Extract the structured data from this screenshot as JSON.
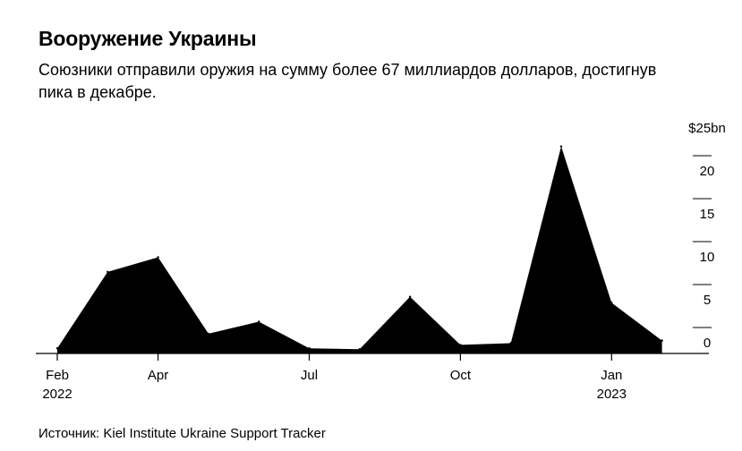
{
  "title": "Вооружение Украины",
  "subtitle": "Союзники отправили оружия на сумму более 67 миллиардов долларов, достигнув пика в декабре.",
  "source": "Источник: Kiel Institute Ukraine Support Tracker",
  "chart_data": {
    "type": "area",
    "title": "Вооружение Украины",
    "subtitle": "Союзники отправили оружия на сумму более 67 миллиардов долларов, достигнув пика в декабре.",
    "x": [
      "2022-02",
      "2022-03",
      "2022-04",
      "2022-05",
      "2022-06",
      "2022-07",
      "2022-08",
      "2022-09",
      "2022-10",
      "2022-11",
      "2022-12",
      "2023-01",
      "2023-02"
    ],
    "series": [
      {
        "values": [
          0.6,
          9.5,
          11.2,
          2.3,
          3.7,
          0.6,
          0.5,
          6.6,
          1.0,
          1.2,
          24.1,
          5.9,
          1.5
        ]
      }
    ],
    "ylim": [
      0,
      25
    ],
    "y_unit_label": "$25bn",
    "y_ticks": [
      "25",
      "20",
      "15",
      "10",
      "5",
      "0"
    ],
    "x_ticks": [
      {
        "month": "2022-02",
        "label": "Feb",
        "sublabel": "2022"
      },
      {
        "month": "2022-04",
        "label": "Apr",
        "sublabel": ""
      },
      {
        "month": "2022-07",
        "label": "Jul",
        "sublabel": ""
      },
      {
        "month": "2022-10",
        "label": "Oct",
        "sublabel": ""
      },
      {
        "month": "2023-01",
        "label": "Jan",
        "sublabel": "2023"
      }
    ],
    "fill_color": "#000000",
    "axis_color": "#000000",
    "grid": false,
    "legend": "none"
  }
}
